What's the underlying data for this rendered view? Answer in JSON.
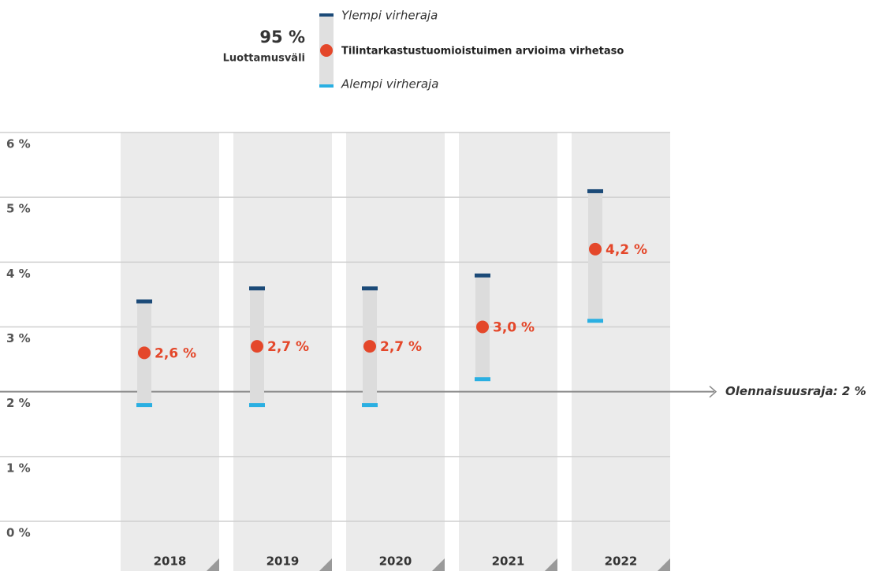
{
  "chart_data": {
    "type": "errorbar",
    "legend_title": "95 %",
    "legend_subtitle": "Luottamusväli",
    "categories": [
      "2018",
      "2019",
      "2020",
      "2021",
      "2022"
    ],
    "series": [
      {
        "name": "Ylempi virheraja",
        "color": "#1b4a78",
        "values": [
          3.4,
          3.6,
          3.6,
          3.8,
          5.1
        ]
      },
      {
        "name": "Tilintarkastustuomioistuimen arvioima virhetaso",
        "color": "#e4472a",
        "values": [
          2.6,
          2.7,
          2.7,
          3.0,
          4.2
        ],
        "value_labels": [
          "2,6 %",
          "2,7 %",
          "2,7 %",
          "3,0 %",
          "4,2 %"
        ]
      },
      {
        "name": "Alempi virheraja",
        "color": "#2aafe2",
        "values": [
          1.8,
          1.8,
          1.8,
          2.2,
          3.1
        ]
      }
    ],
    "ylim": [
      0,
      6
    ],
    "yticks": [
      {
        "value": 0,
        "label": "0 %"
      },
      {
        "value": 1,
        "label": "1 %"
      },
      {
        "value": 2,
        "label": "2 %"
      },
      {
        "value": 3,
        "label": "3 %"
      },
      {
        "value": 4,
        "label": "4 %"
      },
      {
        "value": 5,
        "label": "5 %"
      },
      {
        "value": 6,
        "label": "6 %"
      }
    ],
    "grid": true,
    "threshold": {
      "value": 2,
      "label": "Olennaisuusraja: 2 %"
    }
  }
}
